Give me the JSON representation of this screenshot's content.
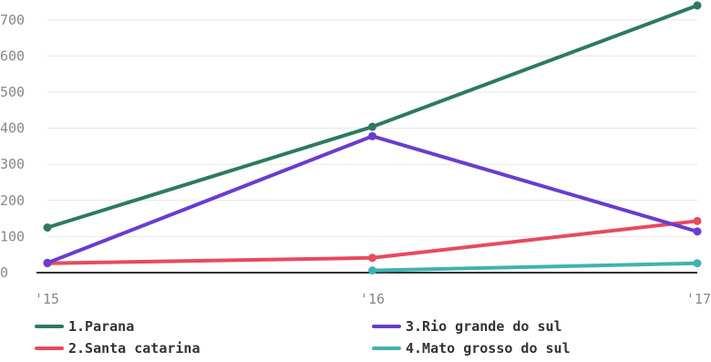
{
  "chart_data": {
    "type": "line",
    "x": [
      "'15",
      "'16",
      "'17"
    ],
    "ylim": [
      0,
      740
    ],
    "yticks": [
      "0",
      "100",
      "200",
      "300",
      "400",
      "500",
      "600",
      "700"
    ],
    "grid": true,
    "legend_placement": "bottom",
    "series": [
      {
        "name": "1.Parana",
        "color": "#2e7a5e",
        "values": [
          125,
          404,
          740
        ]
      },
      {
        "name": "2.Santa catarina",
        "color": "#e84a5f",
        "values": [
          26,
          41,
          143
        ]
      },
      {
        "name": "3.Rio grande do sul",
        "color": "#6a3ccf",
        "values": [
          27,
          378,
          114
        ]
      },
      {
        "name": "4.Mato grosso do sul",
        "color": "#3fb3b0",
        "values": [
          null,
          6,
          26
        ]
      }
    ]
  }
}
